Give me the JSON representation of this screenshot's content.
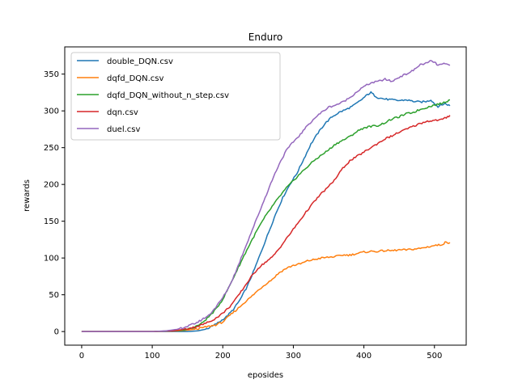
{
  "chart_data": {
    "type": "line",
    "title": "Enduro",
    "xlabel": "eposides",
    "ylabel": "rewards",
    "xlim": [
      -24,
      545
    ],
    "ylim": [
      -18.5,
      387
    ],
    "xticks": [
      0,
      100,
      200,
      300,
      400,
      500
    ],
    "yticks": [
      0,
      50,
      100,
      150,
      200,
      250,
      300,
      350
    ],
    "grid": false,
    "legend_position": "top-left",
    "series": [
      {
        "name": "double_DQN.csv",
        "color": "#1f77b4",
        "points": [
          [
            0,
            0
          ],
          [
            100,
            0
          ],
          [
            150,
            0
          ],
          [
            165,
            1
          ],
          [
            175,
            3
          ],
          [
            185,
            7
          ],
          [
            195,
            13
          ],
          [
            205,
            20
          ],
          [
            215,
            30
          ],
          [
            225,
            44
          ],
          [
            235,
            62
          ],
          [
            245,
            85
          ],
          [
            255,
            110
          ],
          [
            265,
            135
          ],
          [
            275,
            160
          ],
          [
            285,
            182
          ],
          [
            295,
            200
          ],
          [
            305,
            215
          ],
          [
            315,
            235
          ],
          [
            325,
            255
          ],
          [
            335,
            270
          ],
          [
            345,
            283
          ],
          [
            355,
            292
          ],
          [
            365,
            298
          ],
          [
            375,
            302
          ],
          [
            385,
            307
          ],
          [
            395,
            314
          ],
          [
            405,
            322
          ],
          [
            410,
            325
          ],
          [
            415,
            321
          ],
          [
            420,
            318
          ],
          [
            430,
            316
          ],
          [
            440,
            315
          ],
          [
            450,
            314
          ],
          [
            460,
            315
          ],
          [
            470,
            313
          ],
          [
            480,
            312
          ],
          [
            490,
            313
          ],
          [
            495,
            315
          ],
          [
            500,
            310
          ],
          [
            505,
            306
          ],
          [
            510,
            308
          ],
          [
            515,
            310
          ],
          [
            522,
            307
          ]
        ]
      },
      {
        "name": "dqfd_DQN.csv",
        "color": "#ff7f0e",
        "points": [
          [
            0,
            0
          ],
          [
            100,
            0
          ],
          [
            140,
            1
          ],
          [
            160,
            3
          ],
          [
            175,
            6
          ],
          [
            190,
            9
          ],
          [
            200,
            13
          ],
          [
            210,
            22
          ],
          [
            220,
            30
          ],
          [
            230,
            39
          ],
          [
            240,
            47
          ],
          [
            250,
            56
          ],
          [
            260,
            64
          ],
          [
            270,
            71
          ],
          [
            280,
            80
          ],
          [
            290,
            86
          ],
          [
            300,
            90
          ],
          [
            310,
            92
          ],
          [
            320,
            96
          ],
          [
            330,
            98
          ],
          [
            340,
            100
          ],
          [
            350,
            101
          ],
          [
            360,
            102
          ],
          [
            370,
            104
          ],
          [
            380,
            104
          ],
          [
            390,
            106
          ],
          [
            400,
            108
          ],
          [
            410,
            109
          ],
          [
            420,
            109
          ],
          [
            430,
            110
          ],
          [
            440,
            110
          ],
          [
            450,
            111
          ],
          [
            460,
            111
          ],
          [
            470,
            112
          ],
          [
            480,
            113
          ],
          [
            490,
            115
          ],
          [
            500,
            117
          ],
          [
            510,
            118
          ],
          [
            515,
            121
          ],
          [
            522,
            121
          ]
        ]
      },
      {
        "name": "dqfd_DQN_without_n_step.csv",
        "color": "#2ca02c",
        "points": [
          [
            0,
            0
          ],
          [
            100,
            0
          ],
          [
            130,
            1
          ],
          [
            145,
            2
          ],
          [
            160,
            6
          ],
          [
            170,
            11
          ],
          [
            180,
            20
          ],
          [
            190,
            30
          ],
          [
            200,
            44
          ],
          [
            210,
            63
          ],
          [
            220,
            83
          ],
          [
            230,
            103
          ],
          [
            240,
            122
          ],
          [
            250,
            140
          ],
          [
            260,
            156
          ],
          [
            270,
            170
          ],
          [
            280,
            183
          ],
          [
            290,
            195
          ],
          [
            300,
            205
          ],
          [
            310,
            215
          ],
          [
            320,
            224
          ],
          [
            330,
            233
          ],
          [
            340,
            240
          ],
          [
            350,
            247
          ],
          [
            360,
            255
          ],
          [
            370,
            260
          ],
          [
            380,
            265
          ],
          [
            390,
            272
          ],
          [
            400,
            277
          ],
          [
            410,
            279
          ],
          [
            420,
            280
          ],
          [
            430,
            284
          ],
          [
            440,
            289
          ],
          [
            450,
            292
          ],
          [
            460,
            296
          ],
          [
            470,
            298
          ],
          [
            480,
            302
          ],
          [
            490,
            305
          ],
          [
            500,
            308
          ],
          [
            510,
            310
          ],
          [
            515,
            312
          ],
          [
            522,
            315
          ]
        ]
      },
      {
        "name": "dqn.csv",
        "color": "#d62728",
        "points": [
          [
            0,
            0
          ],
          [
            100,
            0
          ],
          [
            130,
            1
          ],
          [
            145,
            3
          ],
          [
            160,
            6
          ],
          [
            170,
            9
          ],
          [
            180,
            13
          ],
          [
            190,
            18
          ],
          [
            200,
            25
          ],
          [
            210,
            34
          ],
          [
            220,
            46
          ],
          [
            230,
            60
          ],
          [
            240,
            74
          ],
          [
            250,
            86
          ],
          [
            260,
            94
          ],
          [
            270,
            101
          ],
          [
            280,
            113
          ],
          [
            290,
            126
          ],
          [
            300,
            139
          ],
          [
            310,
            152
          ],
          [
            320,
            165
          ],
          [
            330,
            177
          ],
          [
            340,
            188
          ],
          [
            350,
            197
          ],
          [
            360,
            208
          ],
          [
            370,
            222
          ],
          [
            380,
            232
          ],
          [
            390,
            238
          ],
          [
            400,
            244
          ],
          [
            410,
            250
          ],
          [
            420,
            256
          ],
          [
            430,
            262
          ],
          [
            440,
            266
          ],
          [
            450,
            271
          ],
          [
            460,
            275
          ],
          [
            470,
            279
          ],
          [
            480,
            283
          ],
          [
            490,
            286
          ],
          [
            500,
            287
          ],
          [
            510,
            288
          ],
          [
            515,
            290
          ],
          [
            522,
            294
          ]
        ]
      },
      {
        "name": "duel.csv",
        "color": "#9467bd",
        "points": [
          [
            0,
            0
          ],
          [
            100,
            0
          ],
          [
            120,
            1
          ],
          [
            135,
            3
          ],
          [
            150,
            7
          ],
          [
            165,
            13
          ],
          [
            180,
            22
          ],
          [
            190,
            33
          ],
          [
            200,
            46
          ],
          [
            210,
            63
          ],
          [
            220,
            85
          ],
          [
            230,
            110
          ],
          [
            240,
            134
          ],
          [
            250,
            158
          ],
          [
            260,
            182
          ],
          [
            270,
            206
          ],
          [
            280,
            228
          ],
          [
            290,
            246
          ],
          [
            300,
            258
          ],
          [
            310,
            268
          ],
          [
            320,
            280
          ],
          [
            330,
            290
          ],
          [
            340,
            298
          ],
          [
            350,
            305
          ],
          [
            360,
            308
          ],
          [
            370,
            312
          ],
          [
            380,
            318
          ],
          [
            390,
            326
          ],
          [
            400,
            333
          ],
          [
            410,
            338
          ],
          [
            420,
            340
          ],
          [
            430,
            343
          ],
          [
            440,
            340
          ],
          [
            450,
            346
          ],
          [
            460,
            350
          ],
          [
            470,
            355
          ],
          [
            480,
            363
          ],
          [
            490,
            365
          ],
          [
            495,
            368
          ],
          [
            500,
            366
          ],
          [
            505,
            362
          ],
          [
            510,
            363
          ],
          [
            515,
            364
          ],
          [
            522,
            362
          ]
        ]
      }
    ]
  }
}
